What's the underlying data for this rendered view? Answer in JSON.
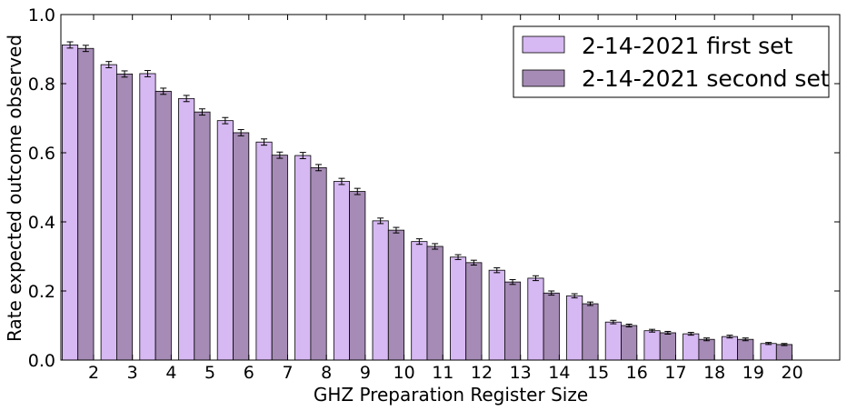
{
  "chart_data": {
    "type": "bar",
    "xlabel": "GHZ Preparation Register Size",
    "ylabel": "Rate expected outcome observed",
    "ylim": [
      0.0,
      1.0
    ],
    "yticks": [
      "0.0",
      "0.2",
      "0.4",
      "0.6",
      "0.8",
      "1.0"
    ],
    "categories": [
      "2",
      "3",
      "4",
      "5",
      "6",
      "7",
      "8",
      "9",
      "10",
      "11",
      "12",
      "13",
      "14",
      "15",
      "16",
      "17",
      "18",
      "19",
      "20"
    ],
    "legend_position": "top-right",
    "grid": false,
    "series": [
      {
        "name": "2-14-2021 first set",
        "color": "#d6b8f2",
        "values": [
          0.912,
          0.855,
          0.829,
          0.757,
          0.693,
          0.631,
          0.592,
          0.517,
          0.403,
          0.343,
          0.298,
          0.26,
          0.237,
          0.186,
          0.11,
          0.085,
          0.076,
          0.068,
          0.048
        ],
        "errors": [
          0.009,
          0.009,
          0.009,
          0.009,
          0.009,
          0.009,
          0.009,
          0.009,
          0.008,
          0.008,
          0.007,
          0.007,
          0.007,
          0.006,
          0.005,
          0.004,
          0.004,
          0.004,
          0.003
        ]
      },
      {
        "name": "2-14-2021 second set",
        "color": "#a58bb5",
        "values": [
          0.902,
          0.828,
          0.778,
          0.718,
          0.658,
          0.593,
          0.557,
          0.488,
          0.376,
          0.329,
          0.282,
          0.226,
          0.194,
          0.163,
          0.1,
          0.079,
          0.06,
          0.06,
          0.045
        ],
        "errors": [
          0.009,
          0.009,
          0.009,
          0.009,
          0.009,
          0.009,
          0.009,
          0.009,
          0.008,
          0.008,
          0.007,
          0.007,
          0.006,
          0.005,
          0.004,
          0.004,
          0.004,
          0.004,
          0.003
        ]
      }
    ]
  }
}
